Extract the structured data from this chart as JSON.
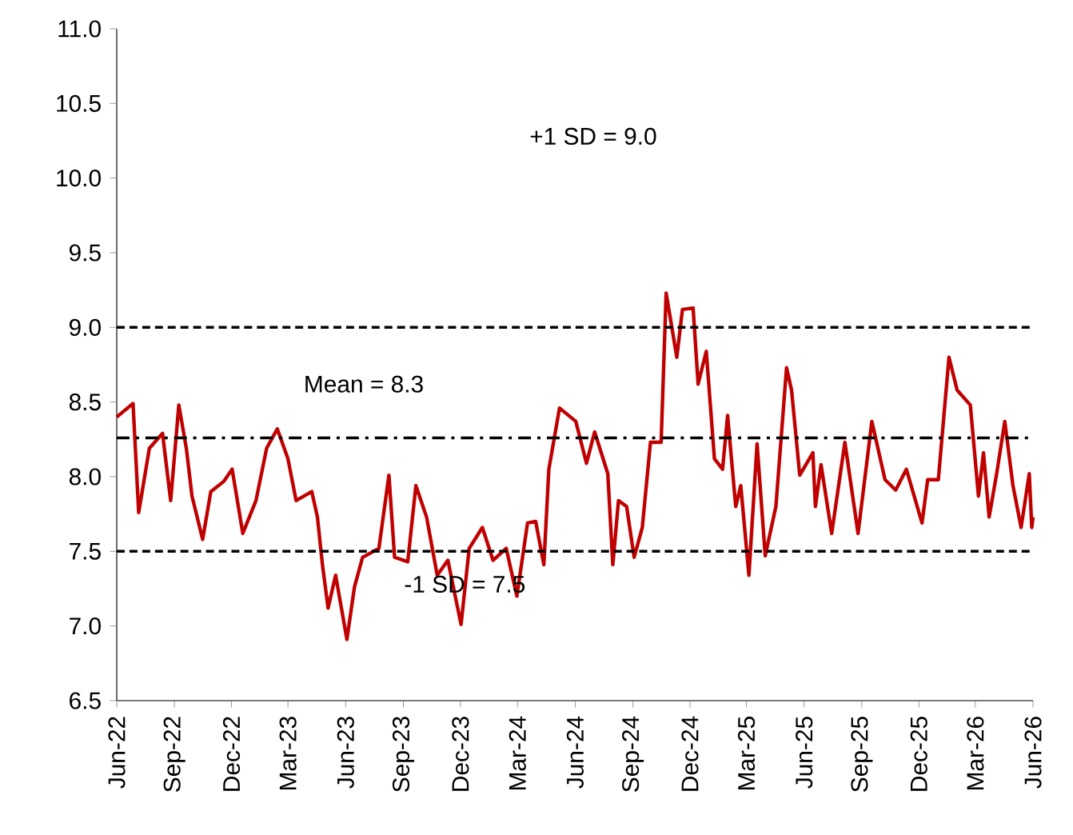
{
  "chart_data": {
    "type": "line",
    "x": [
      "2022-06-01",
      "2022-06-27",
      "2022-07-06",
      "2022-07-23",
      "2022-08-13",
      "2022-08-26",
      "2022-09-08",
      "2022-09-20",
      "2022-09-29",
      "2022-10-16",
      "2022-10-29",
      "2022-11-19",
      "2022-12-02",
      "2022-12-19",
      "2023-01-09",
      "2023-01-26",
      "2023-02-12",
      "2023-03-01",
      "2023-03-14",
      "2023-04-08",
      "2023-04-17",
      "2023-04-25",
      "2023-05-04",
      "2023-05-16",
      "2023-06-03",
      "2023-06-15",
      "2023-06-28",
      "2023-07-24",
      "2023-08-09",
      "2023-08-18",
      "2023-09-08",
      "2023-09-21",
      "2023-10-08",
      "2023-10-25",
      "2023-11-11",
      "2023-12-02",
      "2023-12-15",
      "2024-01-05",
      "2024-01-22",
      "2024-02-12",
      "2024-02-29",
      "2024-03-17",
      "2024-03-30",
      "2024-04-12",
      "2024-04-20",
      "2024-05-07",
      "2024-06-02",
      "2024-06-19",
      "2024-07-02",
      "2024-07-23",
      "2024-07-31",
      "2024-08-09",
      "2024-08-22",
      "2024-09-03",
      "2024-09-16",
      "2024-09-29",
      "2024-10-16",
      "2024-10-24",
      "2024-11-10",
      "2024-11-19",
      "2024-12-06",
      "2024-12-14",
      "2024-12-27",
      "2025-01-09",
      "2025-01-22",
      "2025-01-30",
      "2025-02-12",
      "2025-02-20",
      "2025-03-05",
      "2025-03-18",
      "2025-03-31",
      "2025-04-17",
      "2025-05-04",
      "2025-05-12",
      "2025-05-25",
      "2025-06-15",
      "2025-06-19",
      "2025-06-28",
      "2025-07-15",
      "2025-08-05",
      "2025-08-26",
      "2025-09-17",
      "2025-10-08",
      "2025-10-25",
      "2025-11-11",
      "2025-12-06",
      "2025-12-15",
      "2026-01-01",
      "2026-01-18",
      "2026-01-31",
      "2026-02-21",
      "2026-03-06",
      "2026-03-14",
      "2026-03-23",
      "2026-04-04",
      "2026-04-17",
      "2026-04-30",
      "2026-05-13",
      "2026-05-26",
      "2026-05-30",
      "2026-06-01"
    ],
    "series": [
      {
        "color": "#c00000",
        "values": [
          8.4,
          8.49,
          7.76,
          8.19,
          8.29,
          7.84,
          8.48,
          8.19,
          7.87,
          7.58,
          7.9,
          7.97,
          8.05,
          7.62,
          7.84,
          8.19,
          8.32,
          8.12,
          7.84,
          7.9,
          7.73,
          7.41,
          7.12,
          7.34,
          6.91,
          7.26,
          7.46,
          7.52,
          8.01,
          7.46,
          7.43,
          7.94,
          7.73,
          7.34,
          7.44,
          7.01,
          7.52,
          7.66,
          7.44,
          7.52,
          7.2,
          7.69,
          7.7,
          7.41,
          8.05,
          8.46,
          8.37,
          8.09,
          8.3,
          8.02,
          7.41,
          7.84,
          7.8,
          7.46,
          7.66,
          8.23,
          8.23,
          9.23,
          8.8,
          9.12,
          9.13,
          8.62,
          8.84,
          8.12,
          8.05,
          8.41,
          7.8,
          7.94,
          7.34,
          8.22,
          7.47,
          7.8,
          8.73,
          8.58,
          8.01,
          8.16,
          7.8,
          8.08,
          7.62,
          8.23,
          7.62,
          8.37,
          7.98,
          7.91,
          8.05,
          7.69,
          7.98,
          7.98,
          8.8,
          8.58,
          8.48,
          7.87,
          8.16,
          7.73,
          8.02,
          8.37,
          7.94,
          7.66,
          8.02,
          7.66,
          7.73
        ]
      }
    ],
    "xlim": [
      "2022-06-01",
      "2026-06-01"
    ],
    "xticks": [
      {
        "value": "2022-06-01",
        "label": "Jun-22"
      },
      {
        "value": "2022-09-01",
        "label": "Sep-22"
      },
      {
        "value": "2022-12-01",
        "label": "Dec-22"
      },
      {
        "value": "2023-03-01",
        "label": "Mar-23"
      },
      {
        "value": "2023-06-01",
        "label": "Jun-23"
      },
      {
        "value": "2023-09-01",
        "label": "Sep-23"
      },
      {
        "value": "2023-12-01",
        "label": "Dec-23"
      },
      {
        "value": "2024-03-01",
        "label": "Mar-24"
      },
      {
        "value": "2024-06-01",
        "label": "Jun-24"
      },
      {
        "value": "2024-09-01",
        "label": "Sep-24"
      },
      {
        "value": "2024-12-01",
        "label": "Dec-24"
      },
      {
        "value": "2025-03-01",
        "label": "Mar-25"
      },
      {
        "value": "2025-06-01",
        "label": "Jun-25"
      },
      {
        "value": "2025-09-01",
        "label": "Sep-25"
      },
      {
        "value": "2025-12-01",
        "label": "Dec-25"
      },
      {
        "value": "2026-03-01",
        "label": "Mar-26"
      },
      {
        "value": "2026-06-01",
        "label": "Jun-26"
      }
    ],
    "ylim": [
      6.5,
      11.0
    ],
    "yticks": [
      6.5,
      {
        "value": 7,
        "label": "7.0"
      },
      7.5,
      {
        "value": 8,
        "label": "8.0"
      },
      8.5,
      {
        "value": 9,
        "label": "9.0"
      },
      9.5,
      {
        "value": 10,
        "label": "10.0"
      },
      10.5,
      {
        "value": 11,
        "label": "11.0"
      }
    ],
    "annotations": [
      "+1 SD = 9.0"
    ],
    "ref_lines": [
      {
        "axis": "y",
        "value": 9.0,
        "line_style": "dashed"
      },
      {
        "axis": "y",
        "value": 8.26,
        "label": "Mean  = 8.3",
        "line_style": "dashdot"
      },
      {
        "axis": "y",
        "value": 7.5,
        "label": "-1 SD = 7.5",
        "line_style": "dashed"
      }
    ],
    "grid": false,
    "marker": "none",
    "line_style": "solid"
  }
}
